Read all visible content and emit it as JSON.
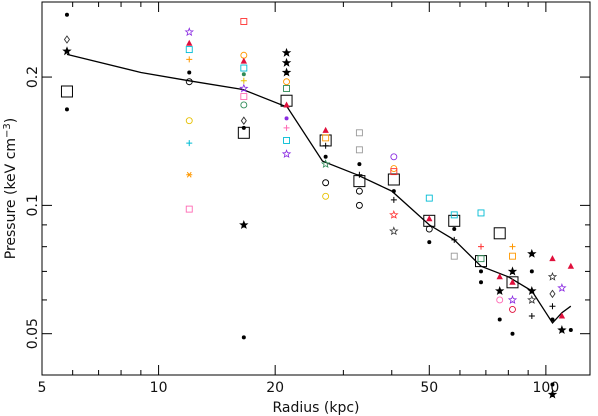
{
  "chart_data": {
    "type": "scatter",
    "title": "",
    "xlabel": "Radius (kpc)",
    "ylabel_main": "Pressure (keV cm",
    "ylabel_exp": "−3",
    "ylabel_close": ")",
    "xscale": "log",
    "yscale": "log",
    "xlim": [
      5,
      130
    ],
    "ylim": [
      0.04,
      0.3
    ],
    "grid": false,
    "legend": "none",
    "x_ticks_major": [
      5,
      10,
      20,
      50,
      100
    ],
    "x_ticks_minor": [
      6,
      7,
      8,
      9,
      30,
      40,
      60,
      70,
      80,
      90
    ],
    "y_ticks_major": [
      0.05,
      0.1,
      0.2
    ],
    "y_ticks_minor": [
      0.06,
      0.07,
      0.08,
      0.09
    ],
    "fit_line": {
      "x": [
        5.8,
        9,
        12,
        16.5,
        21.5,
        26.5,
        32.5,
        40,
        50,
        58,
        68,
        80,
        92,
        100,
        104,
        110,
        116
      ],
      "y": [
        0.226,
        0.205,
        0.196,
        0.187,
        0.17,
        0.127,
        0.118,
        0.108,
        0.09,
        0.083,
        0.072,
        0.068,
        0.063,
        0.056,
        0.053,
        0.056,
        0.058
      ]
    },
    "large_squares": {
      "x": [
        5.8,
        16.6,
        21.4,
        27,
        33,
        40.5,
        50,
        58,
        68,
        76,
        82
      ],
      "y": [
        0.185,
        0.148,
        0.176,
        0.142,
        0.114,
        0.115,
        0.092,
        0.092,
        0.074,
        0.086,
        0.066
      ]
    },
    "scatter_points": [
      {
        "x": 5.8,
        "y": 0.28,
        "shape": "dot",
        "color": "#000000"
      },
      {
        "x": 5.8,
        "y": 0.245,
        "shape": "diamond",
        "color": "#333333"
      },
      {
        "x": 5.8,
        "y": 0.23,
        "shape": "star",
        "color": "#000000"
      },
      {
        "x": 5.8,
        "y": 0.168,
        "shape": "dot",
        "color": "#000000"
      },
      {
        "x": 12,
        "y": 0.255,
        "shape": "star",
        "color": "#8a2be2"
      },
      {
        "x": 12,
        "y": 0.24,
        "shape": "triangle",
        "color": "#e0103c"
      },
      {
        "x": 12,
        "y": 0.232,
        "shape": "square",
        "color": "#00bcd4"
      },
      {
        "x": 12,
        "y": 0.22,
        "shape": "cross",
        "color": "#ff9800"
      },
      {
        "x": 12,
        "y": 0.205,
        "shape": "dot",
        "color": "#000000"
      },
      {
        "x": 12,
        "y": 0.195,
        "shape": "circle",
        "color": "#000000"
      },
      {
        "x": 12,
        "y": 0.158,
        "shape": "circle",
        "color": "#e6c000"
      },
      {
        "x": 12,
        "y": 0.14,
        "shape": "cross",
        "color": "#00bcd4"
      },
      {
        "x": 12,
        "y": 0.118,
        "shape": "asterisk",
        "color": "#ff9800"
      },
      {
        "x": 12,
        "y": 0.098,
        "shape": "square",
        "color": "#ff69b4"
      },
      {
        "x": 16.6,
        "y": 0.27,
        "shape": "square",
        "color": "#ff3030"
      },
      {
        "x": 16.6,
        "y": 0.225,
        "shape": "circle",
        "color": "#ff9800"
      },
      {
        "x": 16.6,
        "y": 0.218,
        "shape": "triangle",
        "color": "#e0103c"
      },
      {
        "x": 16.6,
        "y": 0.21,
        "shape": "square",
        "color": "#00bcd4"
      },
      {
        "x": 16.6,
        "y": 0.203,
        "shape": "dot",
        "color": "#2e8b57"
      },
      {
        "x": 16.6,
        "y": 0.196,
        "shape": "cross",
        "color": "#e6c000"
      },
      {
        "x": 16.6,
        "y": 0.188,
        "shape": "star",
        "color": "#8a2be2"
      },
      {
        "x": 16.6,
        "y": 0.18,
        "shape": "square",
        "color": "#ff69b4"
      },
      {
        "x": 16.6,
        "y": 0.172,
        "shape": "circle",
        "color": "#2e8b57"
      },
      {
        "x": 16.6,
        "y": 0.158,
        "shape": "diamond",
        "color": "#333333"
      },
      {
        "x": 16.6,
        "y": 0.152,
        "shape": "dot",
        "color": "#000000"
      },
      {
        "x": 16.6,
        "y": 0.09,
        "shape": "star",
        "color": "#000000"
      },
      {
        "x": 16.6,
        "y": 0.049,
        "shape": "dot",
        "color": "#000000"
      },
      {
        "x": 21.4,
        "y": 0.228,
        "shape": "star",
        "color": "#000000"
      },
      {
        "x": 21.4,
        "y": 0.216,
        "shape": "star",
        "color": "#000000"
      },
      {
        "x": 21.4,
        "y": 0.205,
        "shape": "star",
        "color": "#000000"
      },
      {
        "x": 21.4,
        "y": 0.195,
        "shape": "circle",
        "color": "#ff9800"
      },
      {
        "x": 21.4,
        "y": 0.188,
        "shape": "square",
        "color": "#2e8b57"
      },
      {
        "x": 21.4,
        "y": 0.172,
        "shape": "triangle",
        "color": "#e0103c"
      },
      {
        "x": 21.4,
        "y": 0.16,
        "shape": "dot",
        "color": "#8a2be2"
      },
      {
        "x": 21.4,
        "y": 0.152,
        "shape": "cross",
        "color": "#ff69b4"
      },
      {
        "x": 21.4,
        "y": 0.142,
        "shape": "square",
        "color": "#00bcd4"
      },
      {
        "x": 21.4,
        "y": 0.132,
        "shape": "star",
        "color": "#8a2be2"
      },
      {
        "x": 27,
        "y": 0.15,
        "shape": "triangle",
        "color": "#e0103c"
      },
      {
        "x": 27,
        "y": 0.144,
        "shape": "square",
        "color": "#ff9800"
      },
      {
        "x": 27,
        "y": 0.138,
        "shape": "cross",
        "color": "#000000"
      },
      {
        "x": 27,
        "y": 0.13,
        "shape": "dot",
        "color": "#000000"
      },
      {
        "x": 27,
        "y": 0.125,
        "shape": "star",
        "color": "#2e8b57"
      },
      {
        "x": 27,
        "y": 0.113,
        "shape": "circle",
        "color": "#000000"
      },
      {
        "x": 27,
        "y": 0.105,
        "shape": "circle",
        "color": "#e6c000"
      },
      {
        "x": 33,
        "y": 0.148,
        "shape": "square",
        "color": "#999999"
      },
      {
        "x": 33,
        "y": 0.135,
        "shape": "square",
        "color": "#999999"
      },
      {
        "x": 33,
        "y": 0.125,
        "shape": "dot",
        "color": "#000000"
      },
      {
        "x": 33,
        "y": 0.118,
        "shape": "cross",
        "color": "#000000"
      },
      {
        "x": 33,
        "y": 0.108,
        "shape": "circle",
        "color": "#000000"
      },
      {
        "x": 33,
        "y": 0.1,
        "shape": "circle",
        "color": "#000000"
      },
      {
        "x": 40.5,
        "y": 0.13,
        "shape": "circle",
        "color": "#8a2be2"
      },
      {
        "x": 40.5,
        "y": 0.122,
        "shape": "circle",
        "color": "#ff9800"
      },
      {
        "x": 40.5,
        "y": 0.12,
        "shape": "square",
        "color": "#ff3030"
      },
      {
        "x": 40.5,
        "y": 0.108,
        "shape": "dot",
        "color": "#000000"
      },
      {
        "x": 40.5,
        "y": 0.103,
        "shape": "cross",
        "color": "#000000"
      },
      {
        "x": 40.5,
        "y": 0.095,
        "shape": "star",
        "color": "#ff3030"
      },
      {
        "x": 40.5,
        "y": 0.087,
        "shape": "star",
        "color": "#333333"
      },
      {
        "x": 50,
        "y": 0.104,
        "shape": "square",
        "color": "#00bcd4"
      },
      {
        "x": 50,
        "y": 0.093,
        "shape": "triangle",
        "color": "#e0103c"
      },
      {
        "x": 50,
        "y": 0.088,
        "shape": "circle",
        "color": "#000000"
      },
      {
        "x": 50,
        "y": 0.082,
        "shape": "dot",
        "color": "#000000"
      },
      {
        "x": 58,
        "y": 0.095,
        "shape": "square",
        "color": "#00bcd4"
      },
      {
        "x": 58,
        "y": 0.088,
        "shape": "dot",
        "color": "#000000"
      },
      {
        "x": 58,
        "y": 0.083,
        "shape": "cross",
        "color": "#000000"
      },
      {
        "x": 58,
        "y": 0.076,
        "shape": "square",
        "color": "#999999"
      },
      {
        "x": 68,
        "y": 0.096,
        "shape": "square",
        "color": "#00bcd4"
      },
      {
        "x": 68,
        "y": 0.08,
        "shape": "cross",
        "color": "#ff3030"
      },
      {
        "x": 68,
        "y": 0.075,
        "shape": "square",
        "color": "#2e8b57"
      },
      {
        "x": 68,
        "y": 0.07,
        "shape": "dot",
        "color": "#000000"
      },
      {
        "x": 68,
        "y": 0.066,
        "shape": "dot",
        "color": "#000000"
      },
      {
        "x": 76,
        "y": 0.068,
        "shape": "triangle",
        "color": "#e0103c"
      },
      {
        "x": 76,
        "y": 0.063,
        "shape": "star",
        "color": "#000000"
      },
      {
        "x": 76,
        "y": 0.06,
        "shape": "circle",
        "color": "#ff69b4"
      },
      {
        "x": 76,
        "y": 0.054,
        "shape": "dot",
        "color": "#000000"
      },
      {
        "x": 82,
        "y": 0.08,
        "shape": "cross",
        "color": "#ff9800"
      },
      {
        "x": 82,
        "y": 0.076,
        "shape": "square",
        "color": "#ff9800"
      },
      {
        "x": 82,
        "y": 0.07,
        "shape": "star",
        "color": "#000000"
      },
      {
        "x": 82,
        "y": 0.066,
        "shape": "triangle",
        "color": "#e0103c"
      },
      {
        "x": 82,
        "y": 0.06,
        "shape": "star",
        "color": "#8a2be2"
      },
      {
        "x": 82,
        "y": 0.057,
        "shape": "circle",
        "color": "#e0103c"
      },
      {
        "x": 82,
        "y": 0.05,
        "shape": "dot",
        "color": "#000000"
      },
      {
        "x": 92,
        "y": 0.077,
        "shape": "star",
        "color": "#000000"
      },
      {
        "x": 92,
        "y": 0.07,
        "shape": "dot",
        "color": "#000000"
      },
      {
        "x": 92,
        "y": 0.063,
        "shape": "star",
        "color": "#000000"
      },
      {
        "x": 92,
        "y": 0.06,
        "shape": "star",
        "color": "#333333"
      },
      {
        "x": 92,
        "y": 0.055,
        "shape": "cross",
        "color": "#000000"
      },
      {
        "x": 104,
        "y": 0.075,
        "shape": "triangle",
        "color": "#e0103c"
      },
      {
        "x": 104,
        "y": 0.068,
        "shape": "star",
        "color": "#333333"
      },
      {
        "x": 104,
        "y": 0.062,
        "shape": "diamond",
        "color": "#333333"
      },
      {
        "x": 104,
        "y": 0.058,
        "shape": "cross",
        "color": "#000000"
      },
      {
        "x": 104,
        "y": 0.054,
        "shape": "dot",
        "color": "#000000"
      },
      {
        "x": 104,
        "y": 0.038,
        "shape": "dot",
        "color": "#000000"
      },
      {
        "x": 104,
        "y": 0.036,
        "shape": "star",
        "color": "#000000"
      },
      {
        "x": 110,
        "y": 0.064,
        "shape": "star",
        "color": "#8a2be2"
      },
      {
        "x": 110,
        "y": 0.055,
        "shape": "triangle",
        "color": "#e0103c"
      },
      {
        "x": 110,
        "y": 0.051,
        "shape": "star",
        "color": "#000000"
      },
      {
        "x": 116,
        "y": 0.072,
        "shape": "triangle",
        "color": "#e0103c"
      },
      {
        "x": 116,
        "y": 0.051,
        "shape": "dot",
        "color": "#000000"
      }
    ]
  }
}
